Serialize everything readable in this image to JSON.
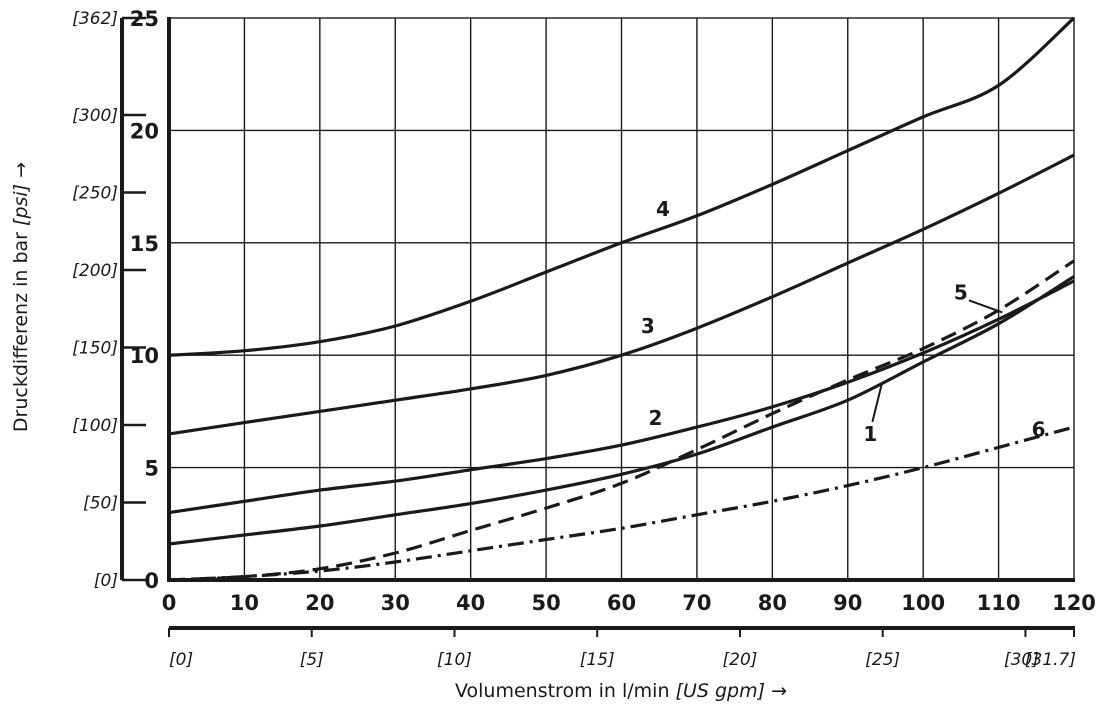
{
  "chart_data": {
    "type": "line",
    "title": "",
    "xlabel": "Volumenstrom in l/min",
    "xlabel_unit": "[US gpm]",
    "xlabel_arrow": "→",
    "ylabel": "Druckdifferenz in bar",
    "ylabel_unit": "[psi]",
    "ylabel_arrow": "→",
    "xlim": [
      0,
      120
    ],
    "ylim": [
      0,
      25
    ],
    "grid": true,
    "x_ticks": [
      "0",
      "10",
      "20",
      "30",
      "40",
      "50",
      "60",
      "70",
      "80",
      "90",
      "100",
      "110",
      "120"
    ],
    "y_ticks": [
      "0",
      "5",
      "10",
      "15",
      "20",
      "25"
    ],
    "x_secondary_ticks": [
      {
        "x": 0,
        "label": "[0]"
      },
      {
        "x": 18.927,
        "label": "[5]"
      },
      {
        "x": 37.854,
        "label": "[10]"
      },
      {
        "x": 56.781,
        "label": "[15]"
      },
      {
        "x": 75.708,
        "label": "[20]"
      },
      {
        "x": 94.635,
        "label": "[25]"
      },
      {
        "x": 113.562,
        "label": "[30]"
      },
      {
        "x": 120,
        "label": "[31.7]"
      }
    ],
    "y_secondary_ticks": [
      {
        "y": 0,
        "label": "[0]"
      },
      {
        "y": 3.447,
        "label": "[50]"
      },
      {
        "y": 6.895,
        "label": "[100]"
      },
      {
        "y": 10.342,
        "label": "[150]"
      },
      {
        "y": 13.79,
        "label": "[200]"
      },
      {
        "y": 17.237,
        "label": "[250]"
      },
      {
        "y": 20.684,
        "label": "[300]"
      },
      {
        "y": 25,
        "label": "[362]"
      }
    ],
    "series": [
      {
        "label": "4",
        "style": "solid",
        "label_pos": {
          "x": 65.5,
          "y": 16.5
        },
        "x": [
          0,
          10,
          20,
          30,
          40,
          50,
          60,
          70,
          80,
          90,
          100,
          110,
          120
        ],
        "y": [
          10.0,
          10.2,
          10.6,
          11.3,
          12.4,
          13.7,
          15.0,
          16.2,
          17.6,
          19.1,
          20.6,
          22.0,
          25.0
        ]
      },
      {
        "label": "3",
        "style": "solid",
        "label_pos": {
          "x": 63.5,
          "y": 11.3
        },
        "x": [
          0,
          10,
          20,
          30,
          40,
          50,
          60,
          70,
          80,
          90,
          100,
          110,
          120
        ],
        "y": [
          6.5,
          7.0,
          7.5,
          8.0,
          8.5,
          9.1,
          10.0,
          11.2,
          12.6,
          14.1,
          15.6,
          17.2,
          18.9
        ]
      },
      {
        "label": "2",
        "style": "solid",
        "label_pos": {
          "x": 64.5,
          "y": 7.2
        },
        "x": [
          0,
          10,
          20,
          30,
          40,
          50,
          60,
          70,
          80,
          90,
          100,
          110,
          120
        ],
        "y": [
          3.0,
          3.5,
          4.0,
          4.4,
          4.9,
          5.4,
          6.0,
          6.8,
          7.7,
          8.8,
          10.1,
          11.6,
          13.3
        ]
      },
      {
        "label": "1",
        "style": "solid",
        "label_pos": {
          "x": 93.0,
          "y": 6.5
        },
        "x": [
          0,
          10,
          20,
          30,
          40,
          50,
          60,
          70,
          80,
          90,
          100,
          110,
          120
        ],
        "y": [
          1.6,
          2.0,
          2.4,
          2.9,
          3.4,
          4.0,
          4.7,
          5.6,
          6.8,
          8.0,
          9.7,
          11.4,
          13.5
        ]
      },
      {
        "label": "5",
        "style": "dashed",
        "label_pos": {
          "x": 105.0,
          "y": 12.8
        },
        "x": [
          0,
          10,
          20,
          30,
          40,
          50,
          60,
          70,
          80,
          90,
          100,
          110,
          120
        ],
        "y": [
          0.0,
          0.15,
          0.5,
          1.2,
          2.2,
          3.2,
          4.3,
          5.8,
          7.4,
          8.9,
          10.3,
          12.0,
          14.2
        ]
      },
      {
        "label": "6",
        "style": "dashdot",
        "label_pos": {
          "x": 115.3,
          "y": 6.7
        },
        "x": [
          0,
          10,
          20,
          30,
          40,
          50,
          60,
          70,
          80,
          90,
          100,
          110,
          120
        ],
        "y": [
          0.0,
          0.15,
          0.4,
          0.8,
          1.3,
          1.8,
          2.3,
          2.9,
          3.5,
          4.2,
          5.0,
          5.9,
          6.8
        ]
      }
    ]
  }
}
